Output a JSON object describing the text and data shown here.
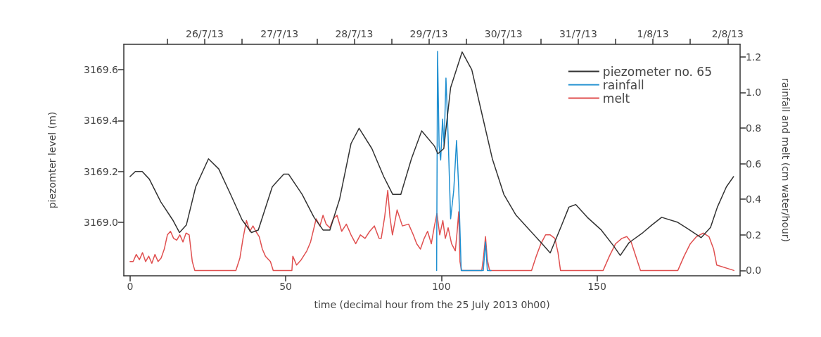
{
  "chart_data": {
    "type": "line",
    "xlabel": "time (decimal hour from the 25 July 2013 0h00)",
    "ylabel": "piezomter level (m)",
    "y2label": "rainfall and melt (cm water/hour)",
    "xlim": [
      -2,
      196
    ],
    "xticks": [
      0,
      50,
      100,
      150
    ],
    "x2lim": [
      "2013-07-24T22:00",
      "2013-08-02T04:00"
    ],
    "x2ticks": [
      {
        "value": "2013-07-25T12:00",
        "label": null
      },
      {
        "value": "2013-07-26",
        "label": "26/7/13"
      },
      {
        "value": "2013-07-26T12:00",
        "label": null
      },
      {
        "value": "2013-07-27",
        "label": "27/7/13"
      },
      {
        "value": "2013-07-27T12:00",
        "label": null
      },
      {
        "value": "2013-07-28",
        "label": "28/7/13"
      },
      {
        "value": "2013-07-28T12:00",
        "label": null
      },
      {
        "value": "2013-07-29",
        "label": "29/7/13"
      },
      {
        "value": "2013-07-29T12:00",
        "label": null
      },
      {
        "value": "2013-07-30",
        "label": "30/7/13"
      },
      {
        "value": "2013-07-30T12:00",
        "label": null
      },
      {
        "value": "2013-07-31",
        "label": "31/7/13"
      },
      {
        "value": "2013-07-31T12:00",
        "label": null
      },
      {
        "value": "2013-08-01",
        "label": "1/8/13"
      },
      {
        "value": "2013-08-01T12:00",
        "label": null
      },
      {
        "value": "2013-08-02",
        "label": "2/8/13"
      }
    ],
    "ylim": [
      3168.79,
      3169.7
    ],
    "yticks": [
      {
        "value": 3169.0,
        "label": "3169.0"
      },
      {
        "value": 3169.2,
        "label": "3169.2"
      },
      {
        "value": 3169.4,
        "label": "3169.4"
      },
      {
        "value": 3169.6,
        "label": "3169.6"
      }
    ],
    "y2lim": [
      -0.03,
      1.27
    ],
    "y2ticks": [
      {
        "value": 0,
        "label": "0.0"
      },
      {
        "value": 0.2,
        "label": "0.2"
      },
      {
        "value": 0.4,
        "label": "0.4"
      },
      {
        "value": 0.6,
        "label": "0.6"
      },
      {
        "value": 0.8,
        "label": "0.8"
      },
      {
        "value": 1,
        "label": "1.0"
      },
      {
        "value": 1.2,
        "label": "1.2"
      }
    ],
    "grid": false,
    "legend": "top right",
    "marker": "none",
    "line_style": "solid",
    "series": [
      {
        "name": "piezometer no. 65",
        "color": "#333333",
        "x": [
          0,
          1.7,
          3.9,
          6.2,
          9.9,
          13.7,
          15.9,
          18.1,
          21.1,
          25.2,
          28.5,
          32.3,
          36,
          39,
          41.2,
          45.7,
          49.4,
          50.9,
          55.3,
          59.1,
          62,
          64.2,
          67.3,
          71,
          73.6,
          77.7,
          81.5,
          84.4,
          87,
          90.4,
          93.7,
          97.8,
          98.9,
          100.8,
          103,
          106.7,
          109.8,
          112.8,
          116.4,
          120.1,
          123.9,
          127.6,
          132.1,
          135,
          138.7,
          141,
          143.2,
          146.9,
          151.4,
          155.2,
          157.5,
          160.3,
          164.8,
          167.7,
          170.8,
          176,
          179.8,
          183.5,
          186.5,
          188.7,
          191.6,
          193.9
        ],
        "values": [
          3169.18,
          3169.2,
          3169.2,
          3169.17,
          3169.08,
          3169.01,
          3168.96,
          3168.99,
          3169.14,
          3169.25,
          3169.21,
          3169.11,
          3169.01,
          3168.96,
          3168.97,
          3169.14,
          3169.19,
          3169.19,
          3169.11,
          3169.02,
          3168.97,
          3168.97,
          3169.09,
          3169.31,
          3169.37,
          3169.29,
          3169.18,
          3169.11,
          3169.11,
          3169.25,
          3169.36,
          3169.3,
          3169.27,
          3169.29,
          3169.53,
          3169.67,
          3169.6,
          3169.44,
          3169.25,
          3169.11,
          3169.03,
          3168.98,
          3168.92,
          3168.88,
          3168.99,
          3169.06,
          3169.07,
          3169.02,
          3168.97,
          3168.91,
          3168.87,
          3168.92,
          3168.96,
          3168.99,
          3169.02,
          3169.0,
          3168.97,
          3168.94,
          3168.98,
          3169.06,
          3169.14,
          3169.18
        ]
      },
      {
        "name": "rainfall",
        "color": "#1f8fd0",
        "axis": "y2",
        "x": [
          98.5,
          98.8,
          99.3,
          99.8,
          100.4,
          100.9,
          101.5,
          102.2,
          103,
          104,
          104.9,
          105.6,
          106.4,
          110,
          113.5,
          114.2,
          114.8,
          116
        ],
        "values": [
          0,
          1.23,
          0.7,
          0.62,
          0.85,
          0.7,
          1.08,
          0.75,
          0.29,
          0.45,
          0.73,
          0.46,
          0,
          0,
          0,
          0.16,
          0,
          0
        ]
      },
      {
        "name": "melt",
        "color": "#e05050",
        "axis": "y2",
        "x": [
          0,
          1,
          2,
          3,
          4,
          5,
          6,
          7,
          8,
          9,
          10,
          11,
          12,
          13,
          14,
          15,
          16,
          17,
          18,
          19,
          20,
          20.8,
          34,
          35.3,
          36.3,
          37.4,
          38.5,
          39.5,
          40.4,
          41.5,
          42.5,
          43.5,
          45.1,
          46,
          52,
          52.3,
          53.5,
          55,
          56.8,
          58,
          59.8,
          61,
          62,
          63,
          64.2,
          65.3,
          66.5,
          68,
          69.5,
          71,
          72.5,
          74,
          75.5,
          77,
          78.5,
          80,
          80.7,
          81.8,
          82.8,
          83.5,
          84.3,
          85.8,
          87.5,
          89.5,
          91,
          92.1,
          93.3,
          94.5,
          95.6,
          96.8,
          97.8,
          98.6,
          99.5,
          100.5,
          101.3,
          102.2,
          103.3,
          104.5,
          105.1,
          105.6,
          106,
          106.5,
          113,
          113.6,
          114.2,
          114.8,
          115.5,
          129,
          130.5,
          132,
          133.5,
          135,
          136.5,
          137.5,
          138.3,
          152,
          154,
          156,
          158,
          159.6,
          161,
          162.5,
          164,
          176,
          178,
          180,
          182,
          184.2,
          186,
          187.5,
          188.5,
          194
        ],
        "values": [
          0.05,
          0.05,
          0.09,
          0.06,
          0.1,
          0.05,
          0.08,
          0.04,
          0.09,
          0.05,
          0.07,
          0.12,
          0.2,
          0.22,
          0.18,
          0.17,
          0.2,
          0.16,
          0.21,
          0.2,
          0.05,
          0,
          0,
          0.07,
          0.18,
          0.28,
          0.22,
          0.25,
          0.22,
          0.19,
          0.12,
          0.08,
          0.05,
          0,
          0,
          0.08,
          0.03,
          0.06,
          0.11,
          0.16,
          0.29,
          0.25,
          0.31,
          0.26,
          0.24,
          0.29,
          0.31,
          0.22,
          0.26,
          0.2,
          0.15,
          0.2,
          0.18,
          0.22,
          0.25,
          0.18,
          0.18,
          0.3,
          0.45,
          0.3,
          0.2,
          0.34,
          0.25,
          0.26,
          0.2,
          0.15,
          0.12,
          0.18,
          0.22,
          0.15,
          0.25,
          0.32,
          0.2,
          0.28,
          0.18,
          0.24,
          0.15,
          0.11,
          0.22,
          0.33,
          0.05,
          0,
          0,
          0.08,
          0.19,
          0.06,
          0,
          0,
          0.08,
          0.15,
          0.2,
          0.2,
          0.18,
          0.1,
          0,
          0,
          0.08,
          0.15,
          0.18,
          0.19,
          0.16,
          0.08,
          0,
          0,
          0.08,
          0.15,
          0.19,
          0.21,
          0.19,
          0.12,
          0.03,
          0
        ]
      }
    ]
  }
}
